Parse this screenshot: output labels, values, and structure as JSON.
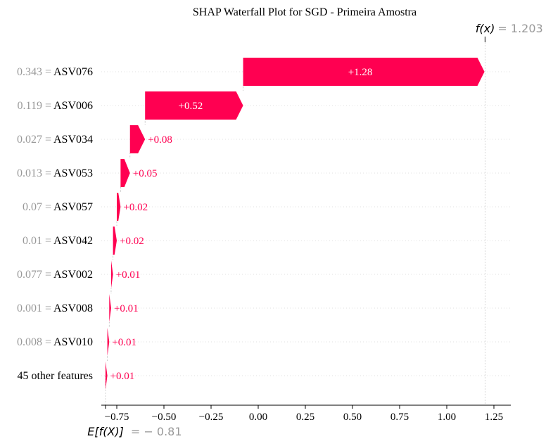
{
  "chart_data": {
    "type": "waterfall",
    "title": "SHAP Waterfall Plot for SGD - Primeira Amostra",
    "fx_label": "f(x)",
    "fx_value": "= 1.203",
    "base_label": "E[f(X)]",
    "base_value": "= − 0.81",
    "base": -0.81,
    "final": 1.203,
    "xlim": [
      -0.81,
      1.33
    ],
    "xticks": [
      -0.75,
      -0.5,
      -0.25,
      0.0,
      0.25,
      0.5,
      0.75,
      1.0,
      1.25
    ],
    "xtick_labels": [
      "−0.75",
      "−0.50",
      "−0.25",
      "0.00",
      "0.25",
      "0.50",
      "0.75",
      "1.00",
      "1.25"
    ],
    "rows": [
      {
        "value": "0.343 =",
        "feature": "ASV076",
        "contribution": 1.28,
        "label": "+1.28"
      },
      {
        "value": "0.119 =",
        "feature": "ASV006",
        "contribution": 0.52,
        "label": "+0.52"
      },
      {
        "value": "0.027 =",
        "feature": "ASV034",
        "contribution": 0.08,
        "label": "+0.08"
      },
      {
        "value": "0.013 =",
        "feature": "ASV053",
        "contribution": 0.05,
        "label": "+0.05"
      },
      {
        "value": "0.07 =",
        "feature": "ASV057",
        "contribution": 0.02,
        "label": "+0.02"
      },
      {
        "value": "0.01 =",
        "feature": "ASV042",
        "contribution": 0.02,
        "label": "+0.02"
      },
      {
        "value": "0.077 =",
        "feature": "ASV002",
        "contribution": 0.01,
        "label": "+0.01"
      },
      {
        "value": "0.001 =",
        "feature": "ASV008",
        "contribution": 0.01,
        "label": "+0.01"
      },
      {
        "value": "0.008 =",
        "feature": "ASV010",
        "contribution": 0.01,
        "label": "+0.01"
      },
      {
        "value": "",
        "feature": "45 other features",
        "contribution": 0.01,
        "label": "+0.01"
      }
    ],
    "colors": {
      "positive": "#ff0051",
      "value_text": "#999999",
      "feature_text": "#000000",
      "grid": "#cccccc"
    }
  }
}
